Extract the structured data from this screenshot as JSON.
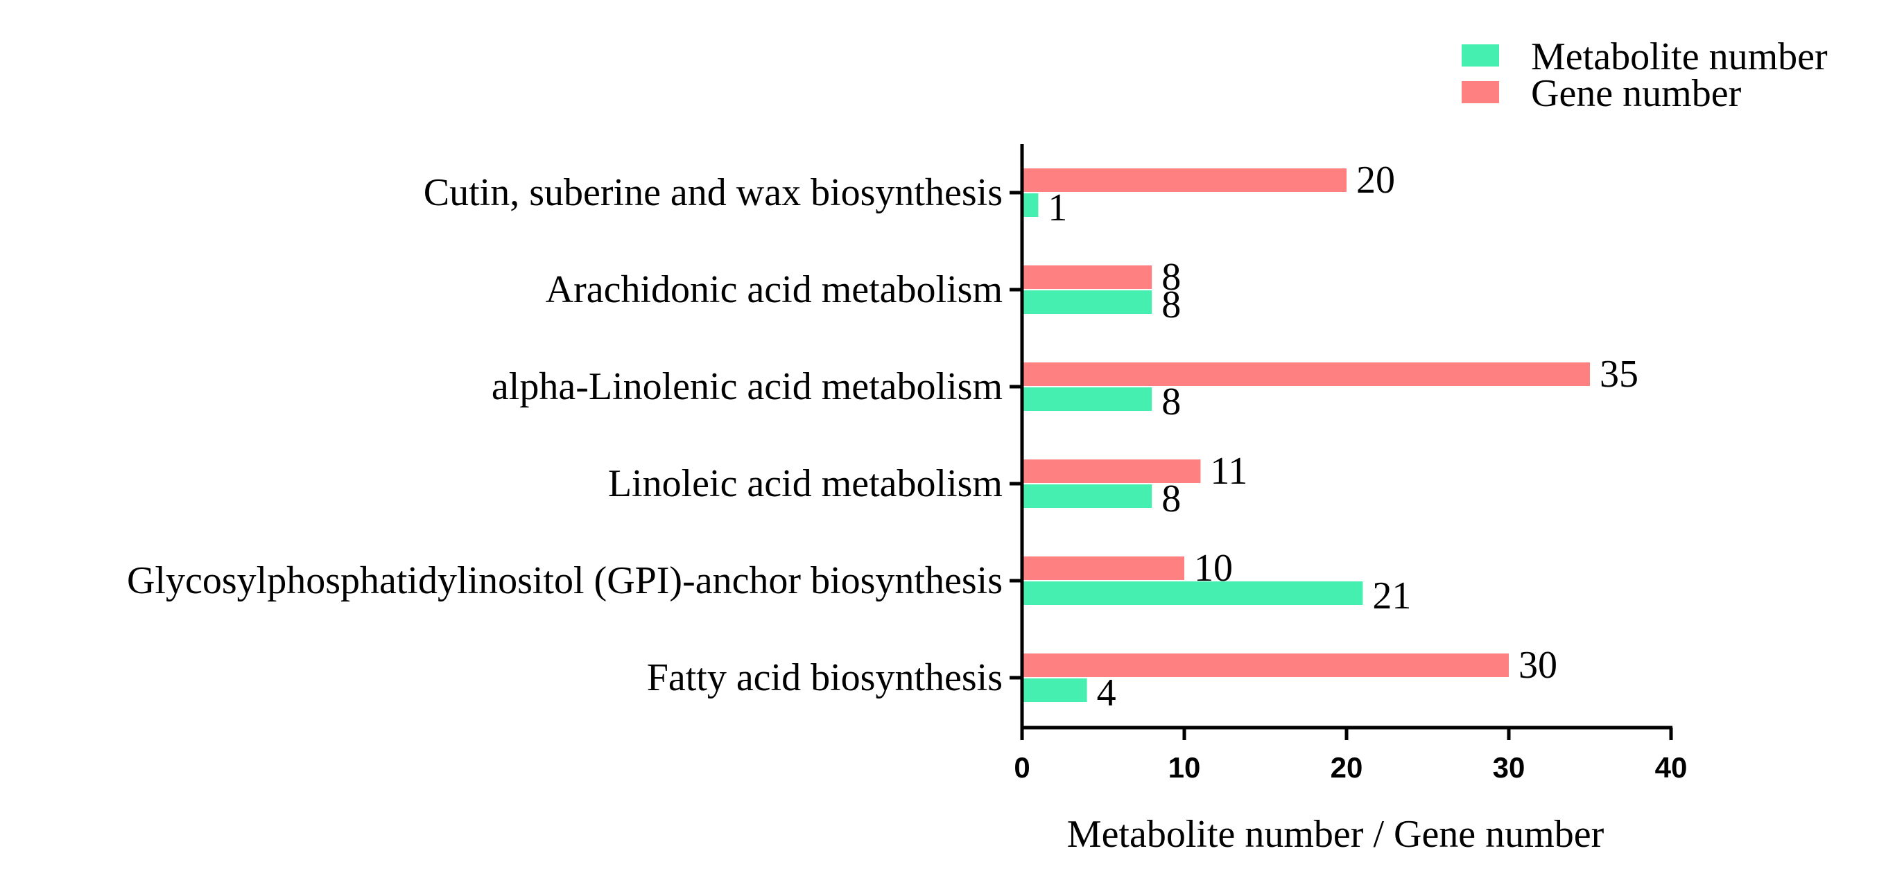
{
  "chart_data": {
    "type": "bar",
    "orientation": "horizontal",
    "categories": [
      "Cutin, suberine and wax biosynthesis",
      "Arachidonic acid metabolism",
      "alpha-Linolenic acid metabolism",
      "Linoleic acid metabolism",
      "Glycosylphosphatidylinositol (GPI)-anchor biosynthesis",
      "Fatty acid biosynthesis"
    ],
    "series": [
      {
        "name": "Gene number",
        "color": "#FF8080",
        "values": [
          20,
          8,
          35,
          11,
          10,
          30
        ]
      },
      {
        "name": "Metabolite number",
        "color": "#45EFB0",
        "values": [
          1,
          8,
          8,
          8,
          21,
          4
        ]
      }
    ],
    "legend_order": [
      "Metabolite number",
      "Gene number"
    ],
    "legend_position": "top-right",
    "xlabel": "Metabolite number / Gene number",
    "ylabel": "",
    "xlim": [
      0,
      40
    ],
    "xticks": [
      0,
      10,
      20,
      30,
      40
    ],
    "grid": false
  }
}
